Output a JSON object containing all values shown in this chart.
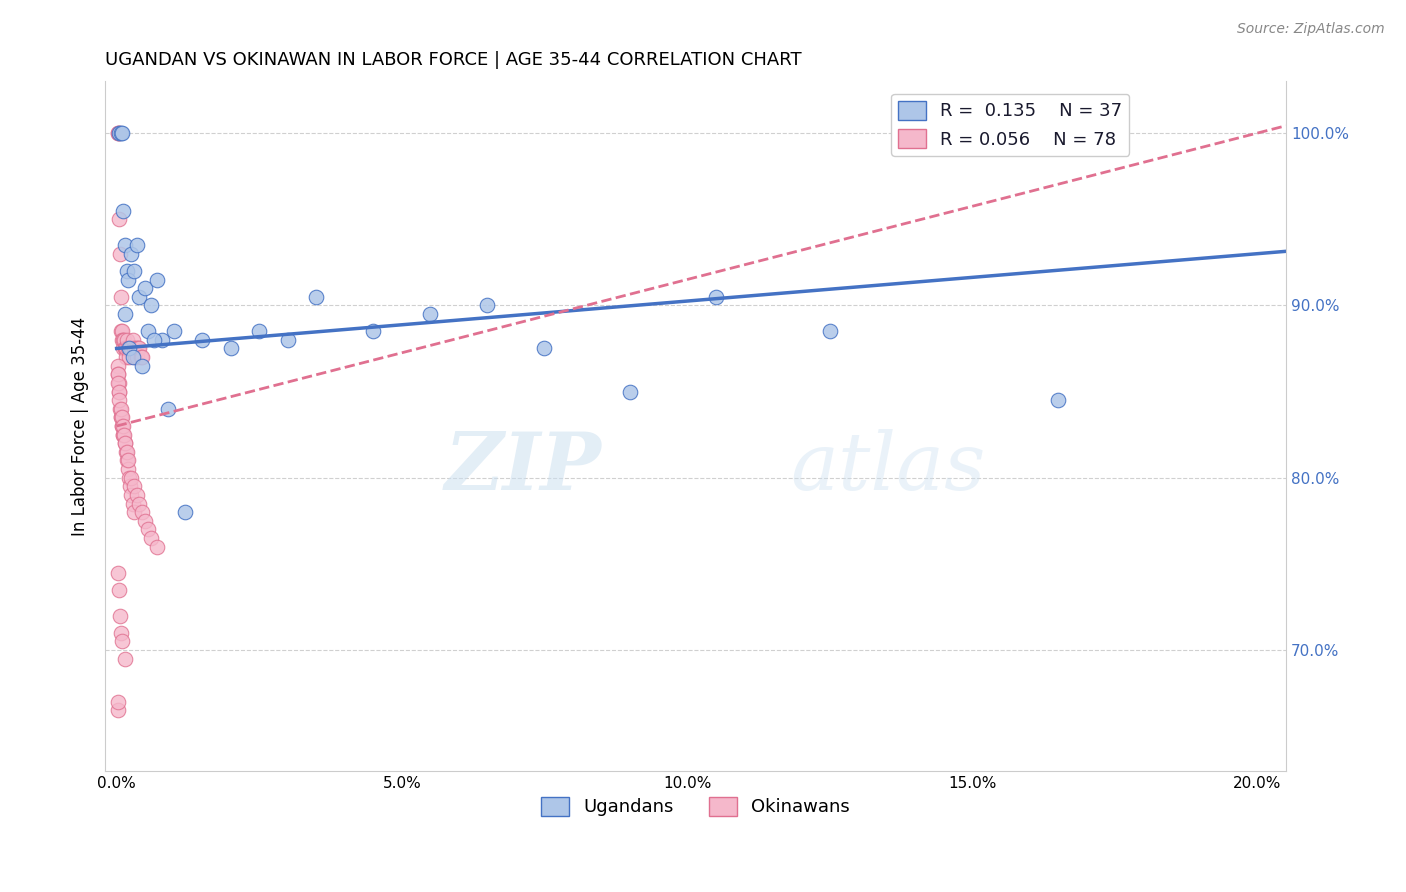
{
  "title": "UGANDAN VS OKINAWAN IN LABOR FORCE | AGE 35-44 CORRELATION CHART",
  "source": "Source: ZipAtlas.com",
  "xlabel_vals": [
    0.0,
    5.0,
    10.0,
    15.0,
    20.0
  ],
  "ylabel": "In Labor Force | Age 35-44",
  "ylabel_vals": [
    70.0,
    80.0,
    90.0,
    100.0
  ],
  "ylim": [
    63.0,
    103.0
  ],
  "xlim": [
    -0.2,
    20.5
  ],
  "ugandan_color": "#aec6e8",
  "okinawan_color": "#f5b8cb",
  "ugandan_line_color": "#4472c4",
  "okinawan_line_color": "#e07090",
  "R_ugandan": 0.135,
  "N_ugandan": 37,
  "R_okinawan": 0.056,
  "N_okinawan": 78,
  "watermark_zip": "ZIP",
  "watermark_atlas": "atlas",
  "ugandan_x": [
    0.05,
    0.08,
    0.1,
    0.12,
    0.15,
    0.18,
    0.2,
    0.25,
    0.3,
    0.35,
    0.4,
    0.5,
    0.55,
    0.6,
    0.7,
    0.8,
    1.0,
    1.5,
    2.0,
    2.5,
    3.0,
    3.5,
    4.5,
    5.5,
    6.5,
    7.5,
    9.0,
    10.5,
    12.5,
    16.5,
    0.15,
    0.22,
    0.28,
    0.45,
    0.65,
    0.9,
    1.2
  ],
  "ugandan_y": [
    100.0,
    100.0,
    100.0,
    95.5,
    93.5,
    92.0,
    91.5,
    93.0,
    92.0,
    93.5,
    90.5,
    91.0,
    88.5,
    90.0,
    91.5,
    88.0,
    88.5,
    88.0,
    87.5,
    88.5,
    88.0,
    90.5,
    88.5,
    89.5,
    90.0,
    87.5,
    85.0,
    90.5,
    88.5,
    84.5,
    89.5,
    87.5,
    87.0,
    86.5,
    88.0,
    84.0,
    78.0
  ],
  "okinawan_x": [
    0.02,
    0.03,
    0.04,
    0.05,
    0.06,
    0.07,
    0.08,
    0.09,
    0.1,
    0.11,
    0.12,
    0.13,
    0.14,
    0.15,
    0.16,
    0.17,
    0.18,
    0.2,
    0.22,
    0.24,
    0.26,
    0.28,
    0.3,
    0.32,
    0.34,
    0.36,
    0.38,
    0.4,
    0.42,
    0.45,
    0.02,
    0.03,
    0.04,
    0.05,
    0.06,
    0.07,
    0.08,
    0.09,
    0.1,
    0.11,
    0.12,
    0.14,
    0.16,
    0.18,
    0.2,
    0.22,
    0.24,
    0.26,
    0.28,
    0.3,
    0.02,
    0.03,
    0.04,
    0.05,
    0.07,
    0.09,
    0.11,
    0.13,
    0.15,
    0.18,
    0.2,
    0.25,
    0.3,
    0.35,
    0.4,
    0.45,
    0.5,
    0.55,
    0.6,
    0.7,
    0.02,
    0.04,
    0.06,
    0.08,
    0.1,
    0.15,
    0.02,
    0.03
  ],
  "okinawan_y": [
    100.0,
    100.0,
    100.0,
    95.0,
    93.0,
    90.5,
    88.5,
    88.5,
    88.0,
    87.5,
    88.0,
    88.0,
    87.5,
    87.5,
    87.0,
    87.5,
    88.0,
    87.5,
    87.0,
    87.5,
    87.5,
    88.0,
    87.5,
    87.0,
    87.5,
    87.0,
    87.5,
    87.5,
    87.0,
    87.0,
    86.5,
    86.0,
    85.5,
    85.0,
    84.0,
    83.5,
    83.5,
    83.0,
    83.0,
    82.5,
    82.5,
    82.0,
    81.5,
    81.0,
    80.5,
    80.0,
    79.5,
    79.0,
    78.5,
    78.0,
    86.0,
    85.5,
    85.0,
    84.5,
    84.0,
    83.5,
    83.0,
    82.5,
    82.0,
    81.5,
    81.0,
    80.0,
    79.5,
    79.0,
    78.5,
    78.0,
    77.5,
    77.0,
    76.5,
    76.0,
    74.5,
    73.5,
    72.0,
    71.0,
    70.5,
    69.5,
    66.5,
    67.0
  ]
}
